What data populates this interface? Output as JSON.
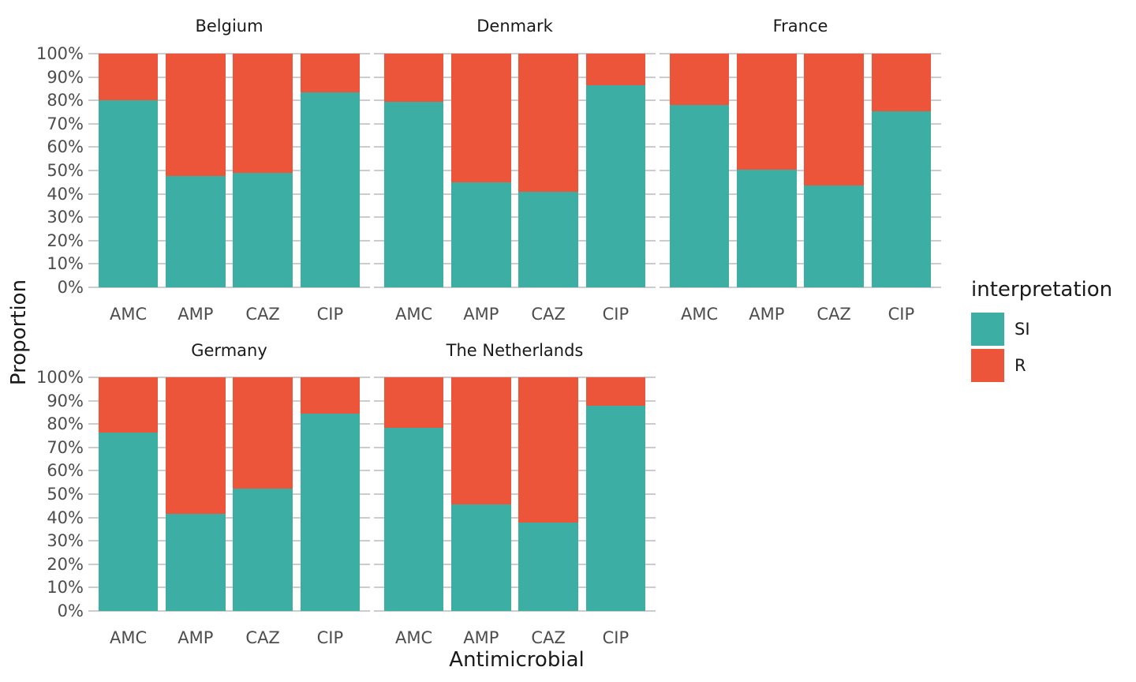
{
  "figure": {
    "y_tick_labels": [
      "100%",
      "90%",
      "80%",
      "70%",
      "60%",
      "50%",
      "40%",
      "30%",
      "20%",
      "10%",
      "0%"
    ]
  },
  "legend": {
    "title": "interpretation",
    "items": [
      {
        "label": "SI",
        "color": "#3CAEA3"
      },
      {
        "label": "R",
        "color": "#ED553B"
      }
    ]
  },
  "chart_data": {
    "type": "bar",
    "stacked": true,
    "orientation": "vertical",
    "unit": "percent",
    "categories": [
      "AMC",
      "AMP",
      "CAZ",
      "CIP"
    ],
    "facets": [
      {
        "title": "Belgium",
        "series": [
          {
            "name": "SI",
            "values": [
              80,
              47.5,
              49,
              83.5
            ]
          },
          {
            "name": "R",
            "values": [
              20,
              52.5,
              51,
              16.5
            ]
          }
        ]
      },
      {
        "title": "Denmark",
        "series": [
          {
            "name": "SI",
            "values": [
              79.5,
              45,
              41,
              86.5
            ]
          },
          {
            "name": "R",
            "values": [
              20.5,
              55,
              59,
              13.5
            ]
          }
        ]
      },
      {
        "title": "France",
        "series": [
          {
            "name": "SI",
            "values": [
              78,
              50.5,
              43.5,
              75.5
            ]
          },
          {
            "name": "R",
            "values": [
              22,
              49.5,
              56.5,
              24.5
            ]
          }
        ]
      },
      {
        "title": "Germany",
        "series": [
          {
            "name": "SI",
            "values": [
              76.5,
              41.5,
              52.5,
              84.5
            ]
          },
          {
            "name": "R",
            "values": [
              23.5,
              58.5,
              47.5,
              15.5
            ]
          }
        ]
      },
      {
        "title": "The Netherlands",
        "series": [
          {
            "name": "SI",
            "values": [
              78.5,
              45.5,
              38,
              88
            ]
          },
          {
            "name": "R",
            "values": [
              21.5,
              54.5,
              62,
              12
            ]
          }
        ]
      }
    ],
    "xlabel": "Antimicrobial",
    "ylabel": "Proportion",
    "ylim": [
      0,
      100
    ],
    "y_ticks_percent": [
      0,
      10,
      20,
      30,
      40,
      50,
      60,
      70,
      80,
      90,
      100
    ],
    "grid": "horizontal-major",
    "gridline_color": "#cccccc",
    "legend_position": "right",
    "colors": {
      "SI": "#3CAEA3",
      "R": "#ED553B"
    }
  }
}
